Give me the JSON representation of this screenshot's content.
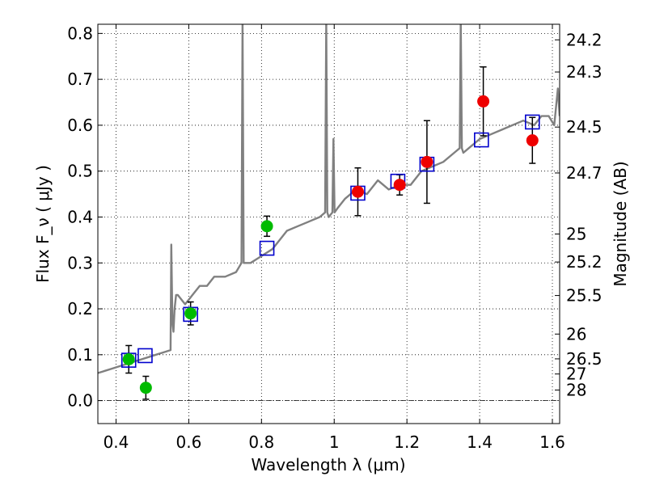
{
  "chart_data": {
    "type": "scatter",
    "title": "",
    "xlabel": "Wavelength  λ (μm)",
    "ylabel": "Flux  F_ν  ( μJy )",
    "ylabel_right": "Magnitude (AB)",
    "xlim": [
      0.35,
      1.62
    ],
    "ylim": [
      -0.05,
      0.82
    ],
    "grid": true,
    "x_ticks": [
      0.4,
      0.6,
      0.8,
      1.0,
      1.2,
      1.4,
      1.6
    ],
    "x_tick_labels": [
      "0.4",
      "0.6",
      "0.8",
      "1",
      "1.2",
      "1.4",
      "1.6"
    ],
    "y_ticks": [
      0.0,
      0.1,
      0.2,
      0.3,
      0.4,
      0.5,
      0.6,
      0.7,
      0.8
    ],
    "y_tick_labels": [
      "0.0",
      "0.1",
      "0.2",
      "0.3",
      "0.4",
      "0.5",
      "0.6",
      "0.7",
      "0.8"
    ],
    "mag_ticks": [
      {
        "label": "24.2",
        "flux": 0.786
      },
      {
        "label": "24.3",
        "flux": 0.716
      },
      {
        "label": "24.5",
        "flux": 0.596
      },
      {
        "label": "24.7",
        "flux": 0.496
      },
      {
        "label": "25",
        "flux": 0.363
      },
      {
        "label": "25.2",
        "flux": 0.302
      },
      {
        "label": "25.5",
        "flux": 0.229
      },
      {
        "label": "26",
        "flux": 0.145
      },
      {
        "label": "26.5",
        "flux": 0.091
      },
      {
        "label": "27",
        "flux": 0.058
      },
      {
        "label": "28",
        "flux": 0.023
      }
    ],
    "series": [
      {
        "name": "Model spectrum",
        "type": "line",
        "color": "#808080",
        "x": [
          0.35,
          0.37,
          0.39,
          0.41,
          0.43,
          0.45,
          0.47,
          0.49,
          0.51,
          0.53,
          0.55,
          0.552,
          0.555,
          0.558,
          0.561,
          0.565,
          0.57,
          0.59,
          0.6,
          0.61,
          0.63,
          0.65,
          0.67,
          0.7,
          0.73,
          0.745,
          0.748,
          0.751,
          0.755,
          0.77,
          0.79,
          0.81,
          0.83,
          0.85,
          0.87,
          0.9,
          0.93,
          0.96,
          0.975,
          0.978,
          0.981,
          0.985,
          0.995,
          0.998,
          1.001,
          1.01,
          1.03,
          1.06,
          1.09,
          1.12,
          1.15,
          1.18,
          1.21,
          1.24,
          1.27,
          1.3,
          1.33,
          1.345,
          1.348,
          1.351,
          1.355,
          1.37,
          1.4,
          1.43,
          1.46,
          1.49,
          1.52,
          1.55,
          1.57,
          1.59,
          1.605,
          1.615,
          1.62
        ],
        "y": [
          0.06,
          0.065,
          0.07,
          0.075,
          0.08,
          0.085,
          0.09,
          0.095,
          0.1,
          0.105,
          0.11,
          0.34,
          0.17,
          0.15,
          0.2,
          0.23,
          0.23,
          0.21,
          0.22,
          0.23,
          0.25,
          0.25,
          0.27,
          0.27,
          0.28,
          0.3,
          0.83,
          0.3,
          0.3,
          0.3,
          0.31,
          0.32,
          0.33,
          0.35,
          0.37,
          0.38,
          0.39,
          0.4,
          0.41,
          0.83,
          0.41,
          0.4,
          0.41,
          0.57,
          0.41,
          0.42,
          0.44,
          0.46,
          0.45,
          0.48,
          0.46,
          0.47,
          0.47,
          0.5,
          0.51,
          0.52,
          0.54,
          0.55,
          0.83,
          0.55,
          0.54,
          0.55,
          0.57,
          0.58,
          0.59,
          0.6,
          0.61,
          0.6,
          0.62,
          0.62,
          0.6,
          0.68,
          0.62
        ]
      },
      {
        "name": "Model photometry",
        "type": "open-square",
        "color": "#0000cc",
        "x": [
          0.435,
          0.48,
          0.605,
          0.815,
          1.065,
          1.175,
          1.255,
          1.405,
          1.545
        ],
        "y": [
          0.088,
          0.098,
          0.188,
          0.332,
          0.452,
          0.478,
          0.515,
          0.568,
          0.607
        ]
      },
      {
        "name": "Optical detections",
        "type": "filled-circle",
        "color": "#00bb00",
        "x": [
          0.435,
          0.482,
          0.605,
          0.815
        ],
        "y": [
          0.09,
          0.028,
          0.19,
          0.38
        ],
        "err": [
          0.03,
          0.025,
          0.025,
          0.022
        ]
      },
      {
        "name": "NIR detections",
        "type": "filled-circle",
        "color": "#ee0000",
        "x": [
          1.065,
          1.18,
          1.255,
          1.41,
          1.545
        ],
        "y": [
          0.455,
          0.47,
          0.52,
          0.652,
          0.567
        ],
        "err": [
          0.052,
          0.022,
          0.09,
          0.075,
          0.05
        ]
      }
    ]
  }
}
